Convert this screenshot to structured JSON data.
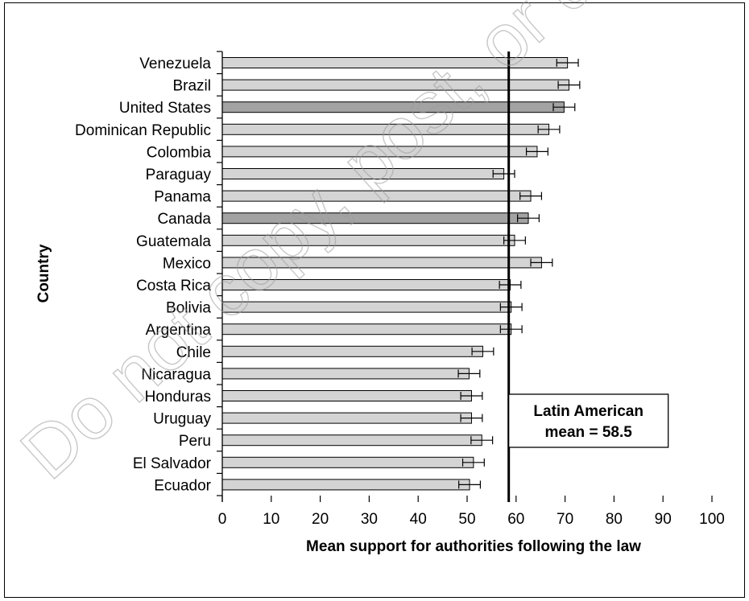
{
  "chart_data": {
    "type": "bar",
    "orientation": "horizontal",
    "ylabel": "Country",
    "xlabel": "Mean support for authorities following the law",
    "xlim": [
      0,
      100
    ],
    "x_ticks": [
      0,
      10,
      20,
      30,
      40,
      50,
      60,
      70,
      80,
      90,
      100
    ],
    "grid": false,
    "legend": "none",
    "colors": {
      "bar": "#d4d4d4",
      "highlight": "#a3a3a3",
      "stroke": "#000000"
    },
    "categories": [
      "Venezuela",
      "Brazil",
      "United States",
      "Dominican Republic",
      "Colombia",
      "Paraguay",
      "Panama",
      "Canada",
      "Guatemala",
      "Mexico",
      "Costa Rica",
      "Bolivia",
      "Argentina",
      "Chile",
      "Nicaragua",
      "Honduras",
      "Uruguay",
      "Peru",
      "El Salvador",
      "Ecuador"
    ],
    "values": [
      70.5,
      70.8,
      69.8,
      66.7,
      64.3,
      57.5,
      63.0,
      62.5,
      59.7,
      65.2,
      58.8,
      59.0,
      59.0,
      53.2,
      50.4,
      50.9,
      50.9,
      53.0,
      51.3,
      50.5
    ],
    "error": [
      2.2,
      2.2,
      2.2,
      2.2,
      2.2,
      2.2,
      2.2,
      2.2,
      2.2,
      2.2,
      2.2,
      2.2,
      2.2,
      2.2,
      2.2,
      2.2,
      2.2,
      2.2,
      2.2,
      2.2
    ],
    "highlighted": [
      "United States",
      "Canada"
    ],
    "reference_line": {
      "value": 58.5
    },
    "annotation": {
      "line1": "Latin American",
      "line2": "mean = 58.5"
    }
  },
  "watermark": "Do not copy, post, or distribute"
}
